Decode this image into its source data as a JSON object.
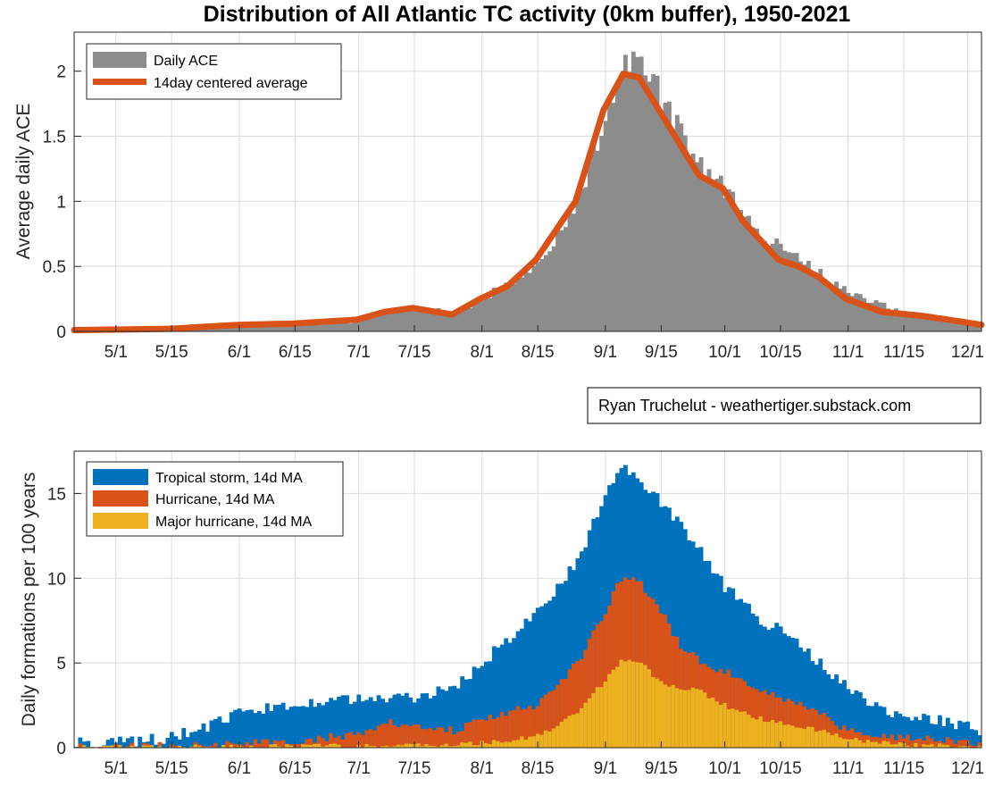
{
  "title": "Distribution of All Atlantic TC activity (0km buffer), 1950-2021",
  "credit": "Ryan Truchelut - weathertiger.substack.com",
  "colors": {
    "daily_ace": "#8c8c8c",
    "ace_avg": "#d95319",
    "tropical_storm": "#0072bd",
    "hurricane": "#d95319",
    "major_hurricane": "#edb120",
    "grid": "#dcdcdc",
    "axis": "#262626"
  },
  "chart_data": [
    {
      "type": "bar",
      "ylabel": "Average daily ACE",
      "xlabel": "",
      "ylim": [
        0,
        2.3
      ],
      "xlim_days_from_apr21": [
        0,
        227
      ],
      "x_tick_labels": [
        "5/1",
        "5/15",
        "6/1",
        "6/15",
        "7/1",
        "7/15",
        "8/1",
        "8/15",
        "9/1",
        "9/15",
        "10/1",
        "10/15",
        "11/1",
        "11/15",
        "12/1"
      ],
      "y_tick_labels": [
        "0",
        "0.5",
        "1",
        "1.5",
        "2"
      ],
      "grid": true,
      "legend_position": "top-left",
      "series": [
        {
          "name": "Daily ACE",
          "kind": "bar",
          "keypoints": [
            [
              "4/21",
              0.01
            ],
            [
              "5/15",
              0.02
            ],
            [
              "6/1",
              0.05
            ],
            [
              "6/15",
              0.06
            ],
            [
              "7/1",
              0.08
            ],
            [
              "7/8",
              0.15
            ],
            [
              "7/15",
              0.18
            ],
            [
              "7/25",
              0.14
            ],
            [
              "8/1",
              0.25
            ],
            [
              "8/15",
              0.5
            ],
            [
              "8/25",
              1.0
            ],
            [
              "9/1",
              1.65
            ],
            [
              "9/5",
              2.0
            ],
            [
              "9/10",
              2.05
            ],
            [
              "9/15",
              1.8
            ],
            [
              "9/20",
              1.5
            ],
            [
              "9/25",
              1.25
            ],
            [
              "10/1",
              1.1
            ],
            [
              "10/6",
              0.85
            ],
            [
              "10/15",
              0.65
            ],
            [
              "10/25",
              0.45
            ],
            [
              "11/1",
              0.3
            ],
            [
              "11/15",
              0.15
            ],
            [
              "12/1",
              0.07
            ],
            [
              "12/5",
              0.05
            ],
            [
              "12/9",
              0.03
            ]
          ]
        },
        {
          "name": "14day centered average",
          "kind": "line",
          "keypoints": [
            [
              "4/21",
              0.01
            ],
            [
              "5/15",
              0.02
            ],
            [
              "6/1",
              0.05
            ],
            [
              "6/15",
              0.06
            ],
            [
              "7/1",
              0.09
            ],
            [
              "7/8",
              0.15
            ],
            [
              "7/15",
              0.18
            ],
            [
              "7/25",
              0.13
            ],
            [
              "8/1",
              0.25
            ],
            [
              "8/8",
              0.35
            ],
            [
              "8/15",
              0.55
            ],
            [
              "8/25",
              1.0
            ],
            [
              "9/1",
              1.7
            ],
            [
              "9/6",
              1.98
            ],
            [
              "9/10",
              1.95
            ],
            [
              "9/15",
              1.7
            ],
            [
              "9/20",
              1.45
            ],
            [
              "9/25",
              1.2
            ],
            [
              "10/1",
              1.1
            ],
            [
              "10/6",
              0.85
            ],
            [
              "10/15",
              0.55
            ],
            [
              "10/20",
              0.5
            ],
            [
              "10/25",
              0.42
            ],
            [
              "11/1",
              0.25
            ],
            [
              "11/10",
              0.15
            ],
            [
              "11/20",
              0.12
            ],
            [
              "12/1",
              0.07
            ],
            [
              "12/5",
              0.05
            ],
            [
              "12/9",
              0.03
            ]
          ]
        }
      ]
    },
    {
      "type": "area",
      "ylabel": "Daily formations per 100 years",
      "xlabel": "",
      "ylim": [
        0,
        17.5
      ],
      "xlim_days_from_apr21": [
        0,
        227
      ],
      "x_tick_labels": [
        "5/1",
        "5/15",
        "6/1",
        "6/15",
        "7/1",
        "7/15",
        "8/1",
        "8/15",
        "9/1",
        "9/15",
        "10/1",
        "10/15",
        "11/1",
        "11/15",
        "12/1"
      ],
      "y_tick_labels": [
        "0",
        "5",
        "10",
        "15"
      ],
      "grid": true,
      "legend_position": "top-left",
      "series": [
        {
          "name": "Tropical storm, 14d MA",
          "keypoints": [
            [
              "4/21",
              0.3
            ],
            [
              "5/1",
              0.3
            ],
            [
              "5/15",
              0.6
            ],
            [
              "5/25",
              1.3
            ],
            [
              "6/1",
              2.0
            ],
            [
              "6/5",
              2.2
            ],
            [
              "6/15",
              2.5
            ],
            [
              "6/25",
              3.0
            ],
            [
              "7/1",
              2.8
            ],
            [
              "7/15",
              3.0
            ],
            [
              "7/25",
              3.5
            ],
            [
              "8/1",
              5.0
            ],
            [
              "8/15",
              8.0
            ],
            [
              "8/25",
              11.0
            ],
            [
              "9/1",
              15.0
            ],
            [
              "9/5",
              16.6
            ],
            [
              "9/10",
              15.5
            ],
            [
              "9/15",
              14.5
            ],
            [
              "9/20",
              13.0
            ],
            [
              "9/25",
              11.5
            ],
            [
              "10/1",
              9.5
            ],
            [
              "10/10",
              7.5
            ],
            [
              "10/15",
              7.0
            ],
            [
              "10/25",
              5.0
            ],
            [
              "11/1",
              3.5
            ],
            [
              "11/10",
              2.2
            ],
            [
              "11/20",
              1.8
            ],
            [
              "12/1",
              1.3
            ],
            [
              "12/5",
              1.0
            ],
            [
              "12/9",
              0.6
            ]
          ]
        },
        {
          "name": "Hurricane, 14d MA",
          "keypoints": [
            [
              "4/21",
              0.0
            ],
            [
              "5/15",
              0.1
            ],
            [
              "6/1",
              0.2
            ],
            [
              "6/15",
              0.4
            ],
            [
              "7/1",
              0.8
            ],
            [
              "7/8",
              1.5
            ],
            [
              "7/15",
              1.3
            ],
            [
              "7/25",
              1.0
            ],
            [
              "8/1",
              1.7
            ],
            [
              "8/15",
              2.5
            ],
            [
              "8/25",
              5.0
            ],
            [
              "9/1",
              8.0
            ],
            [
              "9/5",
              10.0
            ],
            [
              "9/10",
              9.7
            ],
            [
              "9/15",
              8.0
            ],
            [
              "9/20",
              6.0
            ],
            [
              "9/25",
              5.0
            ],
            [
              "10/1",
              4.5
            ],
            [
              "10/10",
              3.5
            ],
            [
              "10/15",
              3.0
            ],
            [
              "10/25",
              2.0
            ],
            [
              "11/1",
              1.0
            ],
            [
              "11/15",
              0.6
            ],
            [
              "12/1",
              0.3
            ],
            [
              "12/9",
              0.05
            ]
          ]
        },
        {
          "name": "Major hurricane, 14d MA",
          "keypoints": [
            [
              "4/21",
              0.0
            ],
            [
              "6/1",
              0.05
            ],
            [
              "7/1",
              0.1
            ],
            [
              "7/15",
              0.1
            ],
            [
              "8/1",
              0.25
            ],
            [
              "8/15",
              0.7
            ],
            [
              "8/25",
              2.0
            ],
            [
              "9/1",
              4.0
            ],
            [
              "9/5",
              5.2
            ],
            [
              "9/10",
              5.0
            ],
            [
              "9/15",
              3.8
            ],
            [
              "9/25",
              3.3
            ],
            [
              "10/1",
              2.5
            ],
            [
              "10/10",
              1.7
            ],
            [
              "10/15",
              1.5
            ],
            [
              "10/25",
              1.0
            ],
            [
              "11/1",
              0.5
            ],
            [
              "11/15",
              0.2
            ],
            [
              "12/1",
              0.05
            ],
            [
              "12/9",
              0.0
            ]
          ]
        }
      ]
    }
  ]
}
